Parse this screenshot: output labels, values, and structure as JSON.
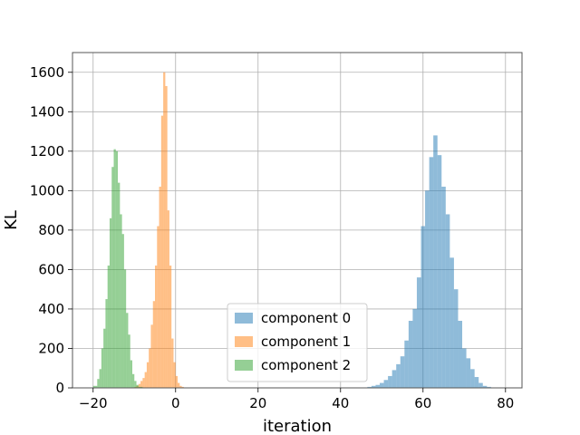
{
  "chart_data": {
    "type": "bar",
    "subtype": "histogram",
    "title": "",
    "xlabel": "iteration",
    "ylabel": "KL",
    "xlim": [
      -25,
      84
    ],
    "ylim": [
      0,
      1700
    ],
    "xticks": [
      -20,
      0,
      20,
      40,
      60,
      80
    ],
    "yticks": [
      0,
      200,
      400,
      600,
      800,
      1000,
      1200,
      1400,
      1600
    ],
    "grid": true,
    "legend": {
      "position": "lower-center"
    },
    "series": [
      {
        "name": "component 0",
        "color": "#1f77b4",
        "alpha": 0.5,
        "bins": [
          [
            46.5,
            47.5,
            5
          ],
          [
            47.5,
            48.5,
            10
          ],
          [
            48.5,
            49.5,
            15
          ],
          [
            49.5,
            50.5,
            25
          ],
          [
            50.5,
            51.5,
            40
          ],
          [
            51.5,
            52.5,
            60
          ],
          [
            52.5,
            53.5,
            90
          ],
          [
            53.5,
            54.5,
            120
          ],
          [
            54.5,
            55.5,
            160
          ],
          [
            55.5,
            56.5,
            240
          ],
          [
            56.5,
            57.5,
            340
          ],
          [
            57.5,
            58.5,
            400
          ],
          [
            58.5,
            59.5,
            560
          ],
          [
            59.5,
            60.5,
            820
          ],
          [
            60.5,
            61.5,
            1000
          ],
          [
            61.5,
            62.5,
            1170
          ],
          [
            62.5,
            63.5,
            1280
          ],
          [
            63.5,
            64.5,
            1180
          ],
          [
            64.5,
            65.5,
            1020
          ],
          [
            65.5,
            66.5,
            880
          ],
          [
            66.5,
            67.5,
            660
          ],
          [
            67.5,
            68.5,
            500
          ],
          [
            68.5,
            69.5,
            340
          ],
          [
            69.5,
            70.5,
            200
          ],
          [
            70.5,
            71.5,
            150
          ],
          [
            71.5,
            72.5,
            95
          ],
          [
            72.5,
            73.5,
            55
          ],
          [
            73.5,
            74.5,
            25
          ],
          [
            74.5,
            75.5,
            10
          ],
          [
            75.5,
            76.5,
            5
          ]
        ]
      },
      {
        "name": "component 1",
        "color": "#ff7f0e",
        "alpha": 0.5,
        "bins": [
          [
            -10.0,
            -9.5,
            5
          ],
          [
            -9.5,
            -9.0,
            10
          ],
          [
            -9.0,
            -8.5,
            20
          ],
          [
            -8.5,
            -8.0,
            35
          ],
          [
            -8.0,
            -7.5,
            50
          ],
          [
            -7.5,
            -7.0,
            80
          ],
          [
            -7.0,
            -6.5,
            130
          ],
          [
            -6.5,
            -6.0,
            200
          ],
          [
            -6.0,
            -5.5,
            320
          ],
          [
            -5.5,
            -5.0,
            440
          ],
          [
            -5.0,
            -4.5,
            620
          ],
          [
            -4.5,
            -4.0,
            820
          ],
          [
            -4.0,
            -3.5,
            1020
          ],
          [
            -3.5,
            -3.0,
            1380
          ],
          [
            -3.0,
            -2.5,
            1600
          ],
          [
            -2.5,
            -2.0,
            1530
          ],
          [
            -2.0,
            -1.5,
            900
          ],
          [
            -1.5,
            -1.0,
            620
          ],
          [
            -1.0,
            -0.5,
            250
          ],
          [
            -0.5,
            0.0,
            130
          ],
          [
            0.0,
            0.5,
            60
          ],
          [
            0.5,
            1.0,
            25
          ],
          [
            1.0,
            1.5,
            10
          ],
          [
            1.5,
            2.0,
            5
          ]
        ]
      },
      {
        "name": "component 2",
        "color": "#2ca02c",
        "alpha": 0.5,
        "bins": [
          [
            -20.0,
            -19.0,
            10
          ],
          [
            -19.0,
            -18.5,
            45
          ],
          [
            -18.5,
            -18.0,
            95
          ],
          [
            -18.0,
            -17.5,
            200
          ],
          [
            -17.5,
            -17.0,
            300
          ],
          [
            -17.0,
            -16.5,
            450
          ],
          [
            -16.5,
            -16.0,
            620
          ],
          [
            -16.0,
            -15.5,
            860
          ],
          [
            -15.5,
            -15.0,
            1120
          ],
          [
            -15.0,
            -14.5,
            1210
          ],
          [
            -14.5,
            -14.0,
            1200
          ],
          [
            -14.0,
            -13.5,
            1040
          ],
          [
            -13.5,
            -13.0,
            880
          ],
          [
            -13.0,
            -12.5,
            780
          ],
          [
            -12.5,
            -12.0,
            600
          ],
          [
            -12.0,
            -11.5,
            380
          ],
          [
            -11.5,
            -11.0,
            270
          ],
          [
            -11.0,
            -10.5,
            140
          ],
          [
            -10.5,
            -10.0,
            70
          ],
          [
            -10.0,
            -9.5,
            35
          ],
          [
            -9.5,
            -9.0,
            15
          ],
          [
            -9.0,
            -8.0,
            5
          ]
        ]
      }
    ]
  }
}
